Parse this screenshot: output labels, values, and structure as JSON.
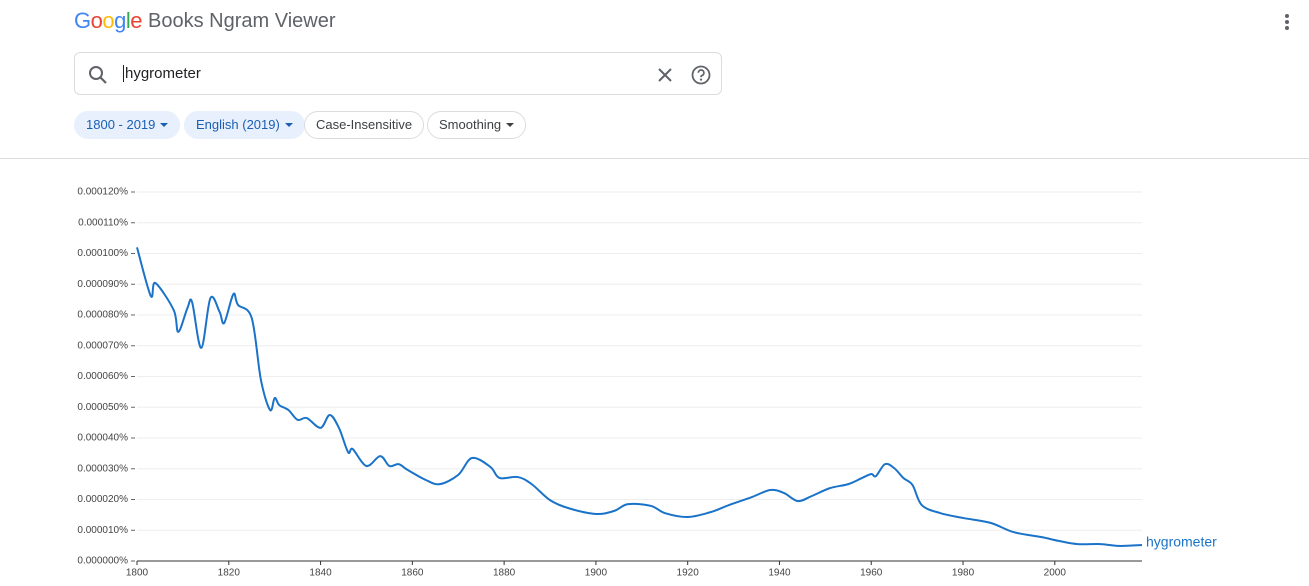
{
  "header": {
    "logo": "Google",
    "title": "Books Ngram Viewer"
  },
  "search": {
    "query": "hygrometer"
  },
  "chips": [
    "1800 - 2019",
    "English (2019)",
    "Case-Insensitive",
    "Smoothing"
  ],
  "chart_data": {
    "type": "line",
    "xlim": [
      1800,
      2019
    ],
    "xticks": [
      1800,
      1820,
      1840,
      1860,
      1880,
      1900,
      1920,
      1940,
      1960,
      1980,
      2000
    ],
    "ylim": [
      0,
      0.00012
    ],
    "yticks": [
      {
        "value": 0,
        "label": "0.000000%"
      },
      {
        "value": 1e-05,
        "label": "0.000010%"
      },
      {
        "value": 2e-05,
        "label": "0.000020%"
      },
      {
        "value": 3e-05,
        "label": "0.000030%"
      },
      {
        "value": 4e-05,
        "label": "0.000040%"
      },
      {
        "value": 5e-05,
        "label": "0.000050%"
      },
      {
        "value": 6e-05,
        "label": "0.000060%"
      },
      {
        "value": 7e-05,
        "label": "0.000070%"
      },
      {
        "value": 8e-05,
        "label": "0.000080%"
      },
      {
        "value": 9e-05,
        "label": "0.000090%"
      },
      {
        "value": 0.0001,
        "label": "0.000100%"
      },
      {
        "value": 0.00011,
        "label": "0.000110%"
      },
      {
        "value": 0.00012,
        "label": "0.000120%"
      }
    ],
    "grid": true,
    "x": [
      1800,
      1803,
      1804,
      1808,
      1809,
      1811,
      1812,
      1814,
      1816,
      1818,
      1819,
      1821,
      1822,
      1825,
      1827,
      1829,
      1830,
      1831,
      1833,
      1835,
      1837,
      1840,
      1842,
      1844,
      1846,
      1847,
      1850,
      1853,
      1855,
      1857,
      1859,
      1863,
      1866,
      1870,
      1873,
      1877,
      1879,
      1883,
      1886,
      1890,
      1894,
      1900,
      1904,
      1907,
      1912,
      1915,
      1920,
      1925,
      1929,
      1934,
      1938,
      1941,
      1944,
      1947,
      1951,
      1955,
      1958,
      1960,
      1961,
      1963,
      1965,
      1967,
      1969,
      1971,
      1975,
      1980,
      1986,
      1991,
      1997,
      2001,
      2005,
      2010,
      2014,
      2019
    ],
    "series": [
      {
        "name": "hygrometer",
        "color": "#1a73c8",
        "values": [
          0.000102,
          8.62e-05,
          9.04e-05,
          8.16e-05,
          7.45e-05,
          8.23e-05,
          8.42e-05,
          6.93e-05,
          8.55e-05,
          8.1e-05,
          7.74e-05,
          8.68e-05,
          8.33e-05,
          7.9e-05,
          5.89e-05,
          4.91e-05,
          5.3e-05,
          5.07e-05,
          4.91e-05,
          4.59e-05,
          4.65e-05,
          4.33e-05,
          4.75e-05,
          4.33e-05,
          3.54e-05,
          3.64e-05,
          3.09e-05,
          3.41e-05,
          3.09e-05,
          3.15e-05,
          2.96e-05,
          2.63e-05,
          2.5e-05,
          2.8e-05,
          3.35e-05,
          3.06e-05,
          2.7e-05,
          2.73e-05,
          2.5e-05,
          1.98e-05,
          1.72e-05,
          1.53e-05,
          1.63e-05,
          1.85e-05,
          1.79e-05,
          1.56e-05,
          1.43e-05,
          1.59e-05,
          1.82e-05,
          2.08e-05,
          2.31e-05,
          2.21e-05,
          1.95e-05,
          2.11e-05,
          2.37e-05,
          2.5e-05,
          2.7e-05,
          2.83e-05,
          2.76e-05,
          3.15e-05,
          3.02e-05,
          2.7e-05,
          2.47e-05,
          1.82e-05,
          1.56e-05,
          1.4e-05,
          1.24e-05,
          9.4e-06,
          7.8e-06,
          6.5e-06,
          5.5e-06,
          5.5e-06,
          4.9e-06,
          5.2e-06
        ]
      }
    ]
  }
}
